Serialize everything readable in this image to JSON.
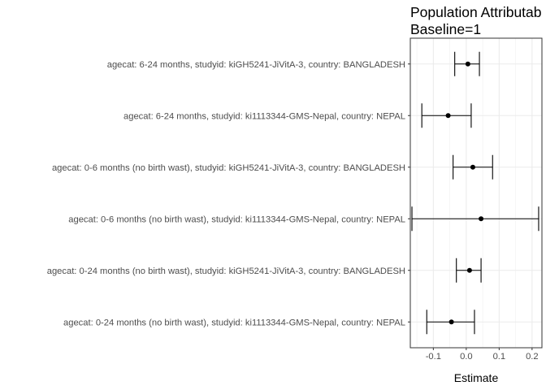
{
  "chart_data": {
    "type": "forest",
    "title_lines": [
      "Population Attributab",
      "Baseline=1"
    ],
    "xlabel": "Estimate",
    "ylabel": "",
    "xlim": [
      -0.17,
      0.23
    ],
    "xticks": [
      -0.1,
      0.0,
      0.1,
      0.2
    ],
    "xtick_labels": [
      "-0.1",
      "0.0",
      "0.1",
      "0.2"
    ],
    "grid": true,
    "rows": [
      {
        "label": "agecat: 6-24 months, studyid: kiGH5241-JiVitA-3, country: BANGLADESH",
        "estimate": 0.005,
        "lower": -0.035,
        "upper": 0.04
      },
      {
        "label": "agecat: 6-24 months, studyid: ki1113344-GMS-Nepal, country: NEPAL",
        "estimate": -0.055,
        "lower": -0.135,
        "upper": 0.015
      },
      {
        "label": "agecat: 0-6 months (no birth wast), studyid: kiGH5241-JiVitA-3, country: BANGLADESH",
        "estimate": 0.02,
        "lower": -0.04,
        "upper": 0.08
      },
      {
        "label": "agecat: 0-6 months (no birth wast), studyid: ki1113344-GMS-Nepal, country: NEPAL",
        "estimate": 0.045,
        "lower": -0.165,
        "upper": 0.22
      },
      {
        "label": "agecat: 0-24 months (no birth wast), studyid: kiGH5241-JiVitA-3, country: BANGLADESH",
        "estimate": 0.01,
        "lower": -0.03,
        "upper": 0.045
      },
      {
        "label": "agecat: 0-24 months (no birth wast), studyid: ki1113344-GMS-Nepal, country: NEPAL",
        "estimate": -0.045,
        "lower": -0.12,
        "upper": 0.025
      }
    ]
  }
}
